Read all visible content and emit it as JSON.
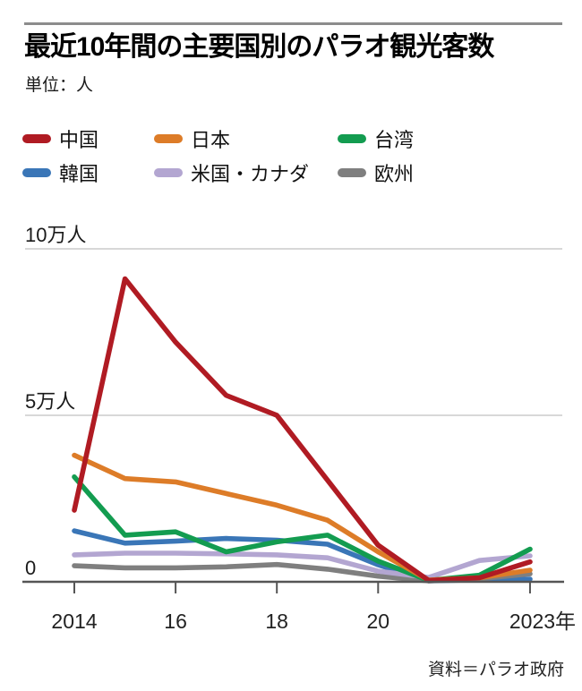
{
  "page": {
    "title": "最近10年間の主要国別のパラオ観光客数",
    "unit_label": "単位：人",
    "source": "資料＝パラオ政府"
  },
  "colors": {
    "china": "#b01b23",
    "japan": "#dd7c28",
    "taiwan": "#139c50",
    "korea": "#3a76b7",
    "us_canada": "#b3a6d1",
    "europe": "#7f7f7f",
    "grid": "#cccccc",
    "axis": "#555555",
    "top_rule": "#8c8c8c"
  },
  "legend": [
    {
      "id": "china",
      "label": "中国",
      "color": "#b01b23"
    },
    {
      "id": "japan",
      "label": "日本",
      "color": "#dd7c28"
    },
    {
      "id": "taiwan",
      "label": "台湾",
      "color": "#139c50"
    },
    {
      "id": "korea",
      "label": "韓国",
      "color": "#3a76b7"
    },
    {
      "id": "us_canada",
      "label": "米国・カナダ",
      "color": "#b3a6d1"
    },
    {
      "id": "europe",
      "label": "欧州",
      "color": "#7f7f7f"
    }
  ],
  "chart_data": {
    "type": "line",
    "x": [
      2014,
      2015,
      2016,
      2017,
      2018,
      2019,
      2020,
      2021,
      2022,
      2023
    ],
    "x_ticks": [
      {
        "label": "2014",
        "year": 2014
      },
      {
        "label": "16",
        "year": 2016
      },
      {
        "label": "18",
        "year": 2018
      },
      {
        "label": "20",
        "year": 2020
      },
      {
        "label": "2023年",
        "year": 2023
      }
    ],
    "y_ticks": [
      {
        "label": "10万人",
        "value": 100000
      },
      {
        "label": "5万人",
        "value": 50000
      },
      {
        "label": "0",
        "value": 0
      }
    ],
    "ylim": [
      0,
      100000
    ],
    "grid": true,
    "legend_position": "top",
    "series": [
      {
        "id": "china",
        "name": "中国",
        "color": "#b01b23",
        "values": [
          21500,
          91000,
          72000,
          56000,
          50000,
          30500,
          11000,
          400,
          1200,
          6000
        ]
      },
      {
        "id": "japan",
        "name": "日本",
        "color": "#dd7c28",
        "values": [
          38000,
          31000,
          30000,
          26500,
          23000,
          18500,
          9000,
          500,
          1200,
          3500
        ]
      },
      {
        "id": "taiwan",
        "name": "台湾",
        "color": "#139c50",
        "values": [
          31500,
          14000,
          15000,
          9000,
          12000,
          14000,
          6200,
          400,
          2000,
          9800
        ]
      },
      {
        "id": "korea",
        "name": "韓国",
        "color": "#3a76b7",
        "values": [
          15300,
          11600,
          12200,
          13000,
          12500,
          11300,
          5100,
          300,
          600,
          800
        ]
      },
      {
        "id": "us_canada",
        "name": "米国・カナダ",
        "color": "#b3a6d1",
        "values": [
          8100,
          8600,
          8600,
          8400,
          8100,
          7200,
          3200,
          1300,
          6400,
          7800
        ]
      },
      {
        "id": "europe",
        "name": "欧州",
        "color": "#7f7f7f",
        "values": [
          4800,
          4200,
          4200,
          4500,
          5200,
          3800,
          1700,
          300,
          900,
          2400
        ]
      }
    ],
    "draw_order": [
      "korea",
      "europe",
      "us_canada",
      "taiwan",
      "japan",
      "china"
    ]
  }
}
